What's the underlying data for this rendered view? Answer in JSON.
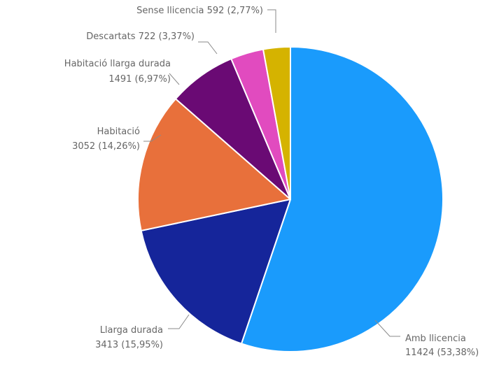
{
  "chart_data": {
    "type": "pie",
    "title": "",
    "slices": [
      {
        "label": "Amb llicencia",
        "value": 11424,
        "pct_label": "11424 (53,38%)",
        "color": "#1a9bfc"
      },
      {
        "label": "Llarga durada",
        "value": 3413,
        "pct_label": "3413 (15,95%)",
        "color": "#15259a"
      },
      {
        "label": "Habitació",
        "value": 3052,
        "pct_label": "3052 (14,26%)",
        "color": "#e8703b"
      },
      {
        "label": "Habitació llarga durada",
        "value": 1491,
        "pct_label": "1491 (6,97%)",
        "color": "#6a0a74"
      },
      {
        "label": "Descartats",
        "value": 722,
        "pct_label": "Descartats 722 (3,37%)",
        "color": "#e14bbf"
      },
      {
        "label": "Sense llicencia",
        "value": 592,
        "pct_label": "Sense llicencia 592 (2,77%)",
        "color": "#d5b300"
      }
    ],
    "legend": "none"
  }
}
